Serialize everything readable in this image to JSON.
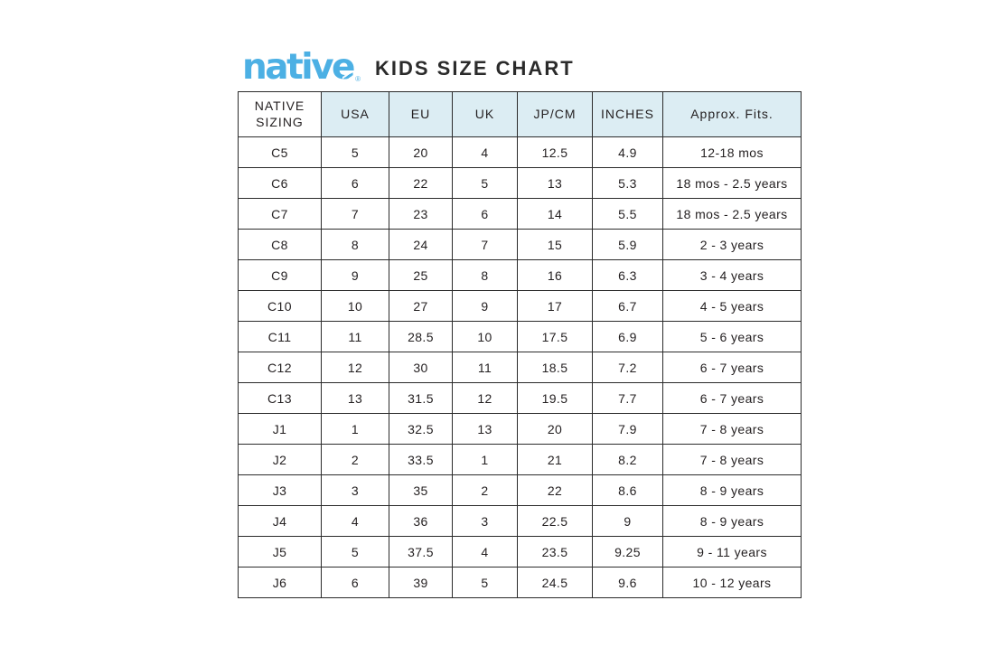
{
  "page": {
    "logo_text": "native",
    "logo_reg_mark": "®",
    "title": "KIDS SIZE CHART"
  },
  "colors": {
    "logo_blue": "#4cb0e4",
    "header_bg": "#dcedf3",
    "border": "#2b2b2b",
    "text": "#231f20",
    "background": "#ffffff"
  },
  "chart_data": {
    "type": "table",
    "title": "KIDS SIZE CHART",
    "columns": [
      "NATIVE SIZING",
      "USA",
      "EU",
      "UK",
      "JP/CM",
      "INCHES",
      "Approx. Fits."
    ],
    "rows": [
      [
        "C5",
        "5",
        "20",
        "4",
        "12.5",
        "4.9",
        "12-18 mos"
      ],
      [
        "C6",
        "6",
        "22",
        "5",
        "13",
        "5.3",
        "18 mos - 2.5 years"
      ],
      [
        "C7",
        "7",
        "23",
        "6",
        "14",
        "5.5",
        "18 mos - 2.5 years"
      ],
      [
        "C8",
        "8",
        "24",
        "7",
        "15",
        "5.9",
        "2 - 3 years"
      ],
      [
        "C9",
        "9",
        "25",
        "8",
        "16",
        "6.3",
        "3 - 4 years"
      ],
      [
        "C10",
        "10",
        "27",
        "9",
        "17",
        "6.7",
        "4 - 5 years"
      ],
      [
        "C11",
        "11",
        "28.5",
        "10",
        "17.5",
        "6.9",
        "5 - 6 years"
      ],
      [
        "C12",
        "12",
        "30",
        "11",
        "18.5",
        "7.2",
        "6 - 7 years"
      ],
      [
        "C13",
        "13",
        "31.5",
        "12",
        "19.5",
        "7.7",
        "6 - 7 years"
      ],
      [
        "J1",
        "1",
        "32.5",
        "13",
        "20",
        "7.9",
        "7 - 8 years"
      ],
      [
        "J2",
        "2",
        "33.5",
        "1",
        "21",
        "8.2",
        "7 - 8 years"
      ],
      [
        "J3",
        "3",
        "35",
        "2",
        "22",
        "8.6",
        "8 - 9 years"
      ],
      [
        "J4",
        "4",
        "36",
        "3",
        "22.5",
        "9",
        "8 - 9 years"
      ],
      [
        "J5",
        "5",
        "37.5",
        "4",
        "23.5",
        "9.25",
        "9 - 11 years"
      ],
      [
        "J6",
        "6",
        "39",
        "5",
        "24.5",
        "9.6",
        "10 - 12 years"
      ]
    ],
    "layout_hints": {
      "grid": true,
      "header_background": "#dcedf3",
      "first_header_cell_background": "#ffffff"
    }
  }
}
